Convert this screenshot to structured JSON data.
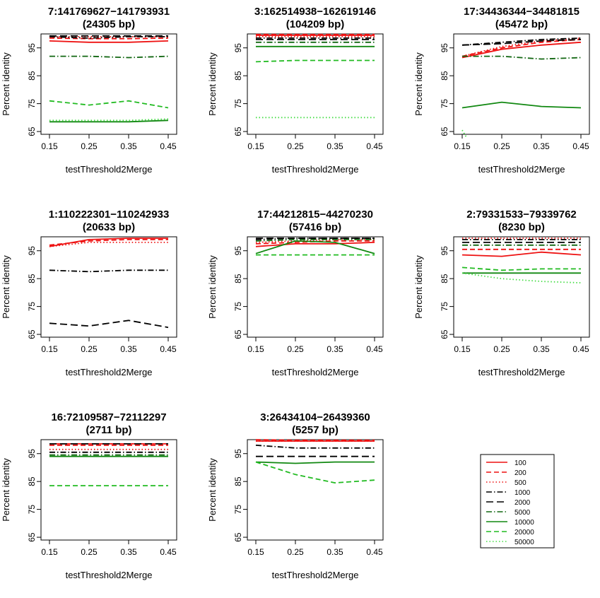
{
  "figure": {
    "xlabel": "testThreshold2Merge",
    "ylabel": "Percent identity"
  },
  "series_styles": {
    "100": {
      "color": "#ee1111",
      "dash": ""
    },
    "200": {
      "color": "#ee1111",
      "dash": "7,4"
    },
    "500": {
      "color": "#ee1111",
      "dash": "1.5,3"
    },
    "1000": {
      "color": "#000000",
      "dash": "8,3,1.5,3"
    },
    "2000": {
      "color": "#000000",
      "dash": "10,5"
    },
    "5000": {
      "color": "#116611",
      "dash": "8,3,1.5,3"
    },
    "10000": {
      "color": "#118811",
      "dash": ""
    },
    "20000": {
      "color": "#22bb22",
      "dash": "7,4"
    },
    "50000": {
      "color": "#44dd44",
      "dash": "1.5,3"
    }
  },
  "legend": {
    "position": "bottom-right",
    "entries": [
      "100",
      "200",
      "500",
      "1000",
      "2000",
      "5000",
      "10000",
      "20000",
      "50000"
    ]
  },
  "chart_data": [
    {
      "type": "line",
      "title": "7:141769627−141793931",
      "subtitle": "(24305 bp)",
      "xlabel": "testThreshold2Merge",
      "ylabel": "Percent identity",
      "x": [
        0.15,
        0.25,
        0.35,
        0.45
      ],
      "xticks": [
        "0.15",
        "0.25",
        "0.35",
        "0.45"
      ],
      "yticks": [
        "65",
        "75",
        "85",
        "95"
      ],
      "ylim": [
        64,
        100
      ],
      "series": [
        {
          "name": "100",
          "values": [
            97.5,
            97,
            97,
            97.5
          ]
        },
        {
          "name": "200",
          "values": [
            98.5,
            98.3,
            98.3,
            98.5
          ]
        },
        {
          "name": "500",
          "values": [
            99,
            99,
            99,
            99
          ]
        },
        {
          "name": "1000",
          "values": [
            99,
            98.5,
            99,
            99
          ]
        },
        {
          "name": "2000",
          "values": [
            99.3,
            99.3,
            99.3,
            99.3
          ]
        },
        {
          "name": "5000",
          "values": [
            92,
            92,
            91.5,
            92
          ]
        },
        {
          "name": "10000",
          "values": [
            68.5,
            68.5,
            68.5,
            69
          ]
        },
        {
          "name": "20000",
          "values": [
            76,
            74.5,
            76,
            73.5
          ]
        },
        {
          "name": "50000",
          "values": [
            69,
            69,
            69,
            69.5
          ]
        }
      ]
    },
    {
      "type": "line",
      "title": "3:162514938−162619146",
      "subtitle": "(104209 bp)",
      "xlabel": "testThreshold2Merge",
      "ylabel": "Percent identity",
      "x": [
        0.15,
        0.25,
        0.35,
        0.45
      ],
      "xticks": [
        "0.15",
        "0.25",
        "0.35",
        "0.45"
      ],
      "yticks": [
        "65",
        "75",
        "85",
        "95"
      ],
      "ylim": [
        64,
        100
      ],
      "series": [
        {
          "name": "100",
          "values": [
            99.5,
            99.5,
            99.5,
            99.5
          ]
        },
        {
          "name": "200",
          "values": [
            99.8,
            99.8,
            99.8,
            99.8
          ]
        },
        {
          "name": "500",
          "values": [
            99,
            99,
            99,
            99
          ]
        },
        {
          "name": "1000",
          "values": [
            98.5,
            98.5,
            98.5,
            98.5
          ]
        },
        {
          "name": "2000",
          "values": [
            98,
            98,
            98,
            98
          ]
        },
        {
          "name": "5000",
          "values": [
            97,
            97,
            97,
            97
          ]
        },
        {
          "name": "10000",
          "values": [
            95.5,
            95.5,
            95.5,
            95.5
          ]
        },
        {
          "name": "20000",
          "values": [
            90,
            90.5,
            90.5,
            90.5
          ]
        },
        {
          "name": "50000",
          "values": [
            70,
            70,
            70,
            70
          ]
        }
      ]
    },
    {
      "type": "line",
      "title": "17:34436344−34481815",
      "subtitle": "(45472 bp)",
      "xlabel": "testThreshold2Merge",
      "ylabel": "Percent identity",
      "x": [
        0.15,
        0.25,
        0.35,
        0.45
      ],
      "xticks": [
        "0.15",
        "0.25",
        "0.35",
        "0.45"
      ],
      "yticks": [
        "65",
        "75",
        "85",
        "95"
      ],
      "ylim": [
        64,
        100
      ],
      "series": [
        {
          "name": "100",
          "values": [
            91.5,
            94.5,
            96,
            97
          ]
        },
        {
          "name": "200",
          "values": [
            92,
            95,
            97,
            98
          ]
        },
        {
          "name": "500",
          "values": [
            92,
            95.5,
            97.5,
            98.5
          ]
        },
        {
          "name": "1000",
          "values": [
            96,
            97,
            98,
            98.5
          ]
        },
        {
          "name": "2000",
          "values": [
            96,
            96.5,
            97.5,
            98
          ]
        },
        {
          "name": "5000",
          "values": [
            92,
            92,
            91,
            91.5
          ]
        },
        {
          "name": "10000",
          "values": [
            73.5,
            75.5,
            74,
            73.5
          ]
        },
        {
          "name": "20000",
          "values": [
            null,
            null,
            null,
            null
          ]
        },
        {
          "name": "50000",
          "values": [
            65.5,
            null,
            null,
            null
          ]
        }
      ]
    },
    {
      "type": "line",
      "title": "1:110222301−110242933",
      "subtitle": "(20633 bp)",
      "xlabel": "testThreshold2Merge",
      "ylabel": "Percent identity",
      "x": [
        0.15,
        0.25,
        0.35,
        0.45
      ],
      "xticks": [
        "0.15",
        "0.25",
        "0.35",
        "0.45"
      ],
      "yticks": [
        "65",
        "75",
        "85",
        "95"
      ],
      "ylim": [
        64,
        100
      ],
      "series": [
        {
          "name": "100",
          "values": [
            96.5,
            99,
            99.5,
            99.5
          ]
        },
        {
          "name": "200",
          "values": [
            97,
            98.5,
            99,
            99
          ]
        },
        {
          "name": "500",
          "values": [
            96.5,
            98,
            98,
            98
          ]
        },
        {
          "name": "1000",
          "values": [
            88,
            87.5,
            88,
            88
          ]
        },
        {
          "name": "2000",
          "values": [
            69,
            68,
            70,
            67.5
          ]
        },
        {
          "name": "5000",
          "values": [
            null,
            null,
            null,
            null
          ]
        },
        {
          "name": "10000",
          "values": [
            null,
            null,
            null,
            null
          ]
        },
        {
          "name": "20000",
          "values": [
            null,
            null,
            null,
            null
          ]
        },
        {
          "name": "50000",
          "values": [
            null,
            null,
            null,
            null
          ]
        }
      ]
    },
    {
      "type": "line",
      "title": "17:44212815−44270230",
      "subtitle": "(57416 bp)",
      "xlabel": "testThreshold2Merge",
      "ylabel": "Percent identity",
      "x": [
        0.15,
        0.25,
        0.35,
        0.45
      ],
      "xticks": [
        "0.15",
        "0.25",
        "0.35",
        "0.45"
      ],
      "yticks": [
        "65",
        "75",
        "85",
        "95"
      ],
      "ylim": [
        64,
        100
      ],
      "series": [
        {
          "name": "100",
          "values": [
            96.5,
            97.5,
            97.5,
            98
          ]
        },
        {
          "name": "200",
          "values": [
            97.5,
            98,
            98.5,
            98.5
          ]
        },
        {
          "name": "500",
          "values": [
            98,
            98.5,
            99,
            99
          ]
        },
        {
          "name": "1000",
          "values": [
            99,
            99.5,
            99.5,
            99.5
          ]
        },
        {
          "name": "2000",
          "values": [
            99.5,
            99.5,
            99.5,
            99.5
          ]
        },
        {
          "name": "5000",
          "values": [
            98.5,
            99,
            99,
            99
          ]
        },
        {
          "name": "10000",
          "values": [
            94,
            98.5,
            98,
            94
          ]
        },
        {
          "name": "20000",
          "values": [
            93.5,
            93.5,
            93.5,
            93.5
          ]
        },
        {
          "name": "50000",
          "values": [
            null,
            null,
            null,
            null
          ]
        }
      ]
    },
    {
      "type": "line",
      "title": "2:79331533−79339762",
      "subtitle": "(8230 bp)",
      "xlabel": "testThreshold2Merge",
      "ylabel": "Percent identity",
      "x": [
        0.15,
        0.25,
        0.35,
        0.45
      ],
      "xticks": [
        "0.15",
        "0.25",
        "0.35",
        "0.45"
      ],
      "yticks": [
        "65",
        "75",
        "85",
        "95"
      ],
      "ylim": [
        64,
        100
      ],
      "series": [
        {
          "name": "100",
          "values": [
            93.5,
            93,
            94.5,
            93.5
          ]
        },
        {
          "name": "200",
          "values": [
            95.5,
            95.5,
            95.5,
            95.5
          ]
        },
        {
          "name": "500",
          "values": [
            99.5,
            99.5,
            99.5,
            99.5
          ]
        },
        {
          "name": "1000",
          "values": [
            99,
            99,
            99,
            99
          ]
        },
        {
          "name": "2000",
          "values": [
            98,
            98,
            98,
            98
          ]
        },
        {
          "name": "5000",
          "values": [
            97,
            97,
            97,
            97
          ]
        },
        {
          "name": "10000",
          "values": [
            87,
            87,
            87,
            87
          ]
        },
        {
          "name": "20000",
          "values": [
            89,
            88,
            88.5,
            88.5
          ]
        },
        {
          "name": "50000",
          "values": [
            87,
            85,
            84,
            83.5
          ]
        }
      ]
    },
    {
      "type": "line",
      "title": "16:72109587−72112297",
      "subtitle": "(2711 bp)",
      "xlabel": "testThreshold2Merge",
      "ylabel": "Percent identity",
      "x": [
        0.15,
        0.25,
        0.35,
        0.45
      ],
      "xticks": [
        "0.15",
        "0.25",
        "0.35",
        "0.45"
      ],
      "yticks": [
        "65",
        "75",
        "85",
        "95"
      ],
      "ylim": [
        64,
        100
      ],
      "series": [
        {
          "name": "100",
          "values": [
            98.5,
            98.5,
            98.5,
            98.5
          ]
        },
        {
          "name": "200",
          "values": [
            98,
            98,
            98,
            98
          ]
        },
        {
          "name": "500",
          "values": [
            96.5,
            96.5,
            96.5,
            96.5
          ]
        },
        {
          "name": "1000",
          "values": [
            95.5,
            95.5,
            95.5,
            95.5
          ]
        },
        {
          "name": "2000",
          "values": [
            98.5,
            98.5,
            98.5,
            98.5
          ]
        },
        {
          "name": "5000",
          "values": [
            94.5,
            94.5,
            94.5,
            94.5
          ]
        },
        {
          "name": "10000",
          "values": [
            94,
            94,
            94,
            94
          ]
        },
        {
          "name": "20000",
          "values": [
            83.5,
            83.5,
            83.5,
            83.5
          ]
        },
        {
          "name": "50000",
          "values": [
            null,
            null,
            null,
            null
          ]
        }
      ]
    },
    {
      "type": "line",
      "title": "3:26434104−26439360",
      "subtitle": "(5257 bp)",
      "xlabel": "testThreshold2Merge",
      "ylabel": "Percent identity",
      "x": [
        0.15,
        0.25,
        0.35,
        0.45
      ],
      "xticks": [
        "0.15",
        "0.25",
        "0.35",
        "0.45"
      ],
      "yticks": [
        "65",
        "75",
        "85",
        "95"
      ],
      "ylim": [
        64,
        100
      ],
      "series": [
        {
          "name": "100",
          "values": [
            99.5,
            99.5,
            99.5,
            99.5
          ]
        },
        {
          "name": "200",
          "values": [
            100,
            99.8,
            99.8,
            99.8
          ]
        },
        {
          "name": "500",
          "values": [
            99.5,
            99.5,
            99.5,
            99.5
          ]
        },
        {
          "name": "1000",
          "values": [
            98,
            97,
            97,
            97
          ]
        },
        {
          "name": "2000",
          "values": [
            94,
            94,
            94,
            94
          ]
        },
        {
          "name": "5000",
          "values": [
            null,
            null,
            null,
            null
          ]
        },
        {
          "name": "10000",
          "values": [
            92,
            91.5,
            92,
            92
          ]
        },
        {
          "name": "20000",
          "values": [
            92,
            87.5,
            84.5,
            85.5
          ]
        },
        {
          "name": "50000",
          "values": [
            null,
            null,
            null,
            null
          ]
        }
      ]
    }
  ]
}
